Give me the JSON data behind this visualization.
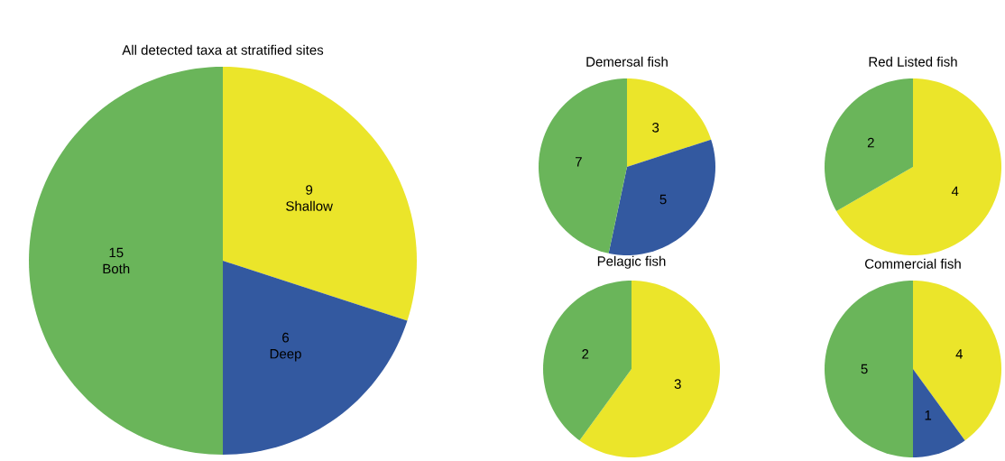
{
  "chart_data": [
    {
      "type": "pie",
      "title": "All detected taxa at stratified sites",
      "categories": [
        "Shallow",
        "Deep",
        "Both"
      ],
      "values": [
        9,
        6,
        15
      ],
      "colors": [
        "#ebe52a",
        "#3359a0",
        "#6ab55a"
      ],
      "data_labels": true
    },
    {
      "type": "pie",
      "title": "Demersal fish",
      "categories": [
        null,
        null,
        null
      ],
      "values": [
        3,
        5,
        7
      ],
      "colors": [
        "#ebe52a",
        "#3359a0",
        "#6ab55a"
      ],
      "data_labels": true
    },
    {
      "type": "pie",
      "title": "Red Listed fish",
      "categories": [
        null,
        null
      ],
      "values": [
        4,
        2
      ],
      "colors": [
        "#ebe52a",
        "#6ab55a"
      ],
      "data_labels": true
    },
    {
      "type": "pie",
      "title": "Pelagic fish",
      "categories": [
        null,
        null
      ],
      "values": [
        3,
        2
      ],
      "colors": [
        "#ebe52a",
        "#6ab55a"
      ],
      "data_labels": true
    },
    {
      "type": "pie",
      "title": "Commercial fish",
      "categories": [
        null,
        null,
        null
      ],
      "values": [
        4,
        1,
        5
      ],
      "colors": [
        "#ebe52a",
        "#3359a0",
        "#6ab55a"
      ],
      "data_labels": true
    }
  ]
}
